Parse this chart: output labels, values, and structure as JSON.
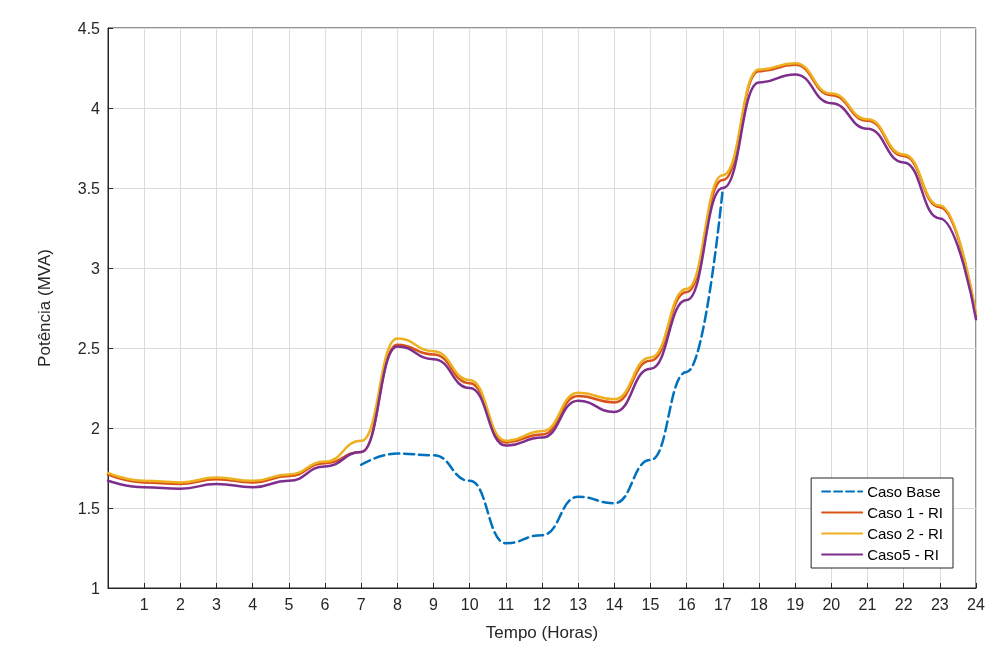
{
  "chart_data": {
    "type": "line",
    "xlabel": "Tempo (Horas)",
    "ylabel": "Potência (MVA)",
    "x": [
      0,
      1,
      2,
      3,
      4,
      5,
      6,
      7,
      8,
      9,
      10,
      11,
      12,
      13,
      14,
      15,
      16,
      17,
      18,
      19,
      20,
      21,
      22,
      23,
      24
    ],
    "series": [
      {
        "name": "Caso Base",
        "color": "#0072bd",
        "line_style": "dashed",
        "values": [
          null,
          null,
          null,
          null,
          null,
          null,
          null,
          1.77,
          1.84,
          1.83,
          1.67,
          1.28,
          1.33,
          1.57,
          1.53,
          1.8,
          2.35,
          3.5,
          null,
          null,
          null,
          null,
          null,
          null,
          null
        ]
      },
      {
        "name": "Caso 1 - RI",
        "color": "#d95319",
        "line_style": "solid",
        "values": [
          1.71,
          1.66,
          1.65,
          1.68,
          1.66,
          1.7,
          1.78,
          1.85,
          2.52,
          2.46,
          2.28,
          1.91,
          1.96,
          2.2,
          2.16,
          2.42,
          2.85,
          3.55,
          4.23,
          4.27,
          4.08,
          3.92,
          3.7,
          3.38,
          2.7
        ]
      },
      {
        "name": "Caso 2 - RI",
        "color": "#edb120",
        "line_style": "solid",
        "values": [
          1.72,
          1.67,
          1.66,
          1.69,
          1.67,
          1.71,
          1.79,
          1.92,
          2.56,
          2.48,
          2.3,
          1.92,
          1.98,
          2.22,
          2.18,
          2.44,
          2.87,
          3.58,
          4.24,
          4.28,
          4.09,
          3.93,
          3.71,
          3.39,
          2.71
        ]
      },
      {
        "name": "Caso5 - RI",
        "color": "#7e2f8e",
        "line_style": "solid",
        "values": [
          1.67,
          1.63,
          1.62,
          1.65,
          1.63,
          1.67,
          1.76,
          1.85,
          2.51,
          2.43,
          2.25,
          1.89,
          1.94,
          2.17,
          2.1,
          2.37,
          2.8,
          3.5,
          4.16,
          4.21,
          4.03,
          3.87,
          3.66,
          3.31,
          2.68
        ]
      }
    ],
    "xlim": [
      0,
      24
    ],
    "xticks": [
      1,
      2,
      3,
      4,
      5,
      6,
      7,
      8,
      9,
      10,
      11,
      12,
      13,
      14,
      15,
      16,
      17,
      18,
      19,
      20,
      21,
      22,
      23,
      24
    ],
    "ylim": [
      1,
      4.5
    ],
    "yticks": [
      1,
      1.5,
      2,
      2.5,
      3,
      3.5,
      4,
      4.5
    ],
    "grid": true,
    "legend": "bottom right",
    "marker": "none"
  }
}
